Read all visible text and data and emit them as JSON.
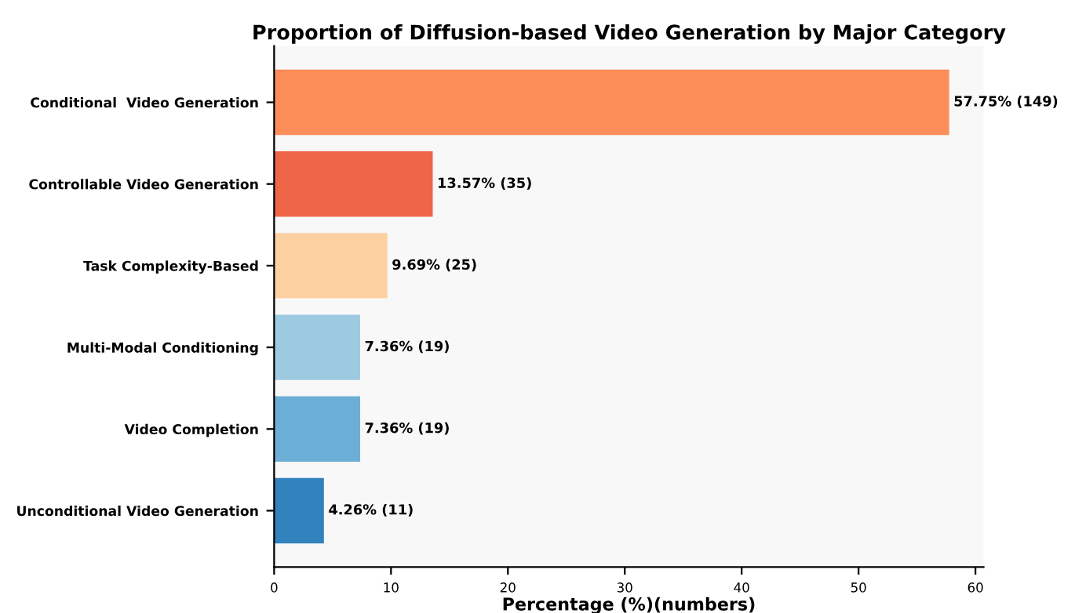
{
  "chart_data": {
    "type": "bar",
    "orientation": "horizontal",
    "title": "Proportion of Diffusion-based Video Generation by Major Category",
    "xlabel": "Percentage (%)(numbers)",
    "categories": [
      "Conditional  Video Generation",
      "Controllable Video Generation",
      "Task Complexity-Based",
      "Multi-Modal Conditioning",
      "Video Completion",
      "Unconditional Video Generation"
    ],
    "values": [
      57.75,
      13.57,
      9.69,
      7.36,
      7.36,
      4.26
    ],
    "colors": [
      "#fc8d59",
      "#ef6548",
      "#fdd0a2",
      "#9ecae1",
      "#6baed6",
      "#3182bd"
    ],
    "value_labels": [
      "57.75% (149)",
      "13.57% (35)",
      "9.69% (25)",
      "7.36% (19)",
      "7.36% (19)",
      "4.26% (11)"
    ],
    "xlim": [
      0,
      60.7
    ],
    "xticks": [
      0,
      10,
      20,
      30,
      40,
      50,
      60
    ],
    "grid": false,
    "legend": false
  }
}
